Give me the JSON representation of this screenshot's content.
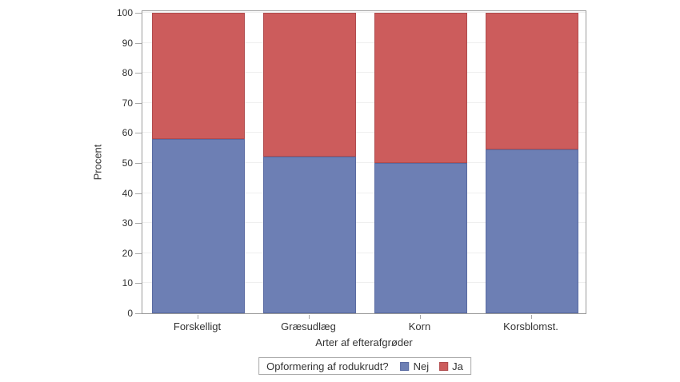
{
  "chart_data": {
    "type": "bar",
    "stacked": true,
    "orientation": "vertical",
    "categories": [
      "Forskelligt",
      "Græsudlæg",
      "Korn",
      "Korsblomst."
    ],
    "series": [
      {
        "name": "Nej",
        "color": "#6d7fb4",
        "border_color": "#5a6ba2",
        "values": [
          58,
          52,
          50,
          54.5
        ]
      },
      {
        "name": "Ja",
        "color": "#cc5c5c",
        "border_color": "#b04c4e",
        "values": [
          42,
          48,
          50,
          45.5
        ]
      }
    ],
    "xlabel": "Arter af efterafgrøder",
    "ylabel": "Procent",
    "ylim": [
      0,
      100
    ],
    "yticks": [
      0,
      10,
      20,
      30,
      40,
      50,
      60,
      70,
      80,
      90,
      100
    ],
    "grid": true,
    "legend": {
      "title": "Opformering af rodukrudt?",
      "position": "bottom",
      "entries": [
        "Nej",
        "Ja"
      ]
    }
  },
  "styles": {
    "background": "#ffffff",
    "frame_color": "#9a9a9a",
    "grid_color": "#efefef",
    "tick_color": "#a8a8a8",
    "text_color": "#333333"
  }
}
